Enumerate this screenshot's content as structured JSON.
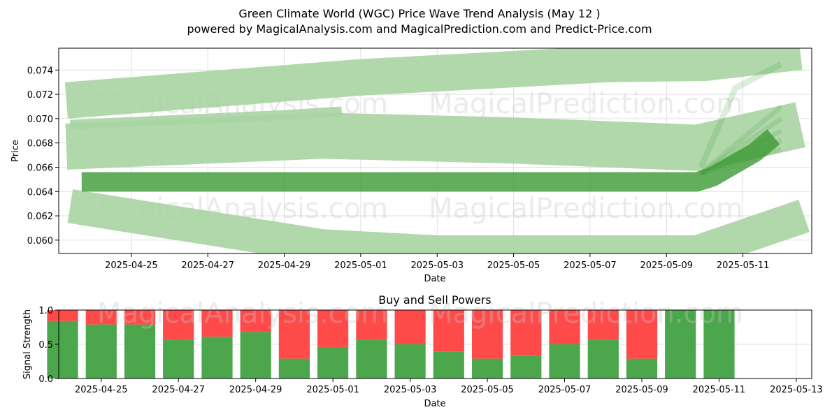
{
  "figure": {
    "title": "Green Climate World (WGC) Price Wave Trend Analysis (May 12 )",
    "subtitle": "powered by MagicalAnalysis.com and MagicalPrediction.com and Predict-Price.com",
    "watermarks": [
      "MagicalAnalysis.com",
      "MagicalPrediction.com",
      "MagicalAnalysis.com",
      "MagicalPrediction.com",
      "MagicalAnalysis.com",
      "MagicalPrediction.com"
    ]
  },
  "colors": {
    "band_light": "#a8d4a2",
    "band_dark": "#3c9a35",
    "buy": "#4ca64c",
    "sell": "#ff4a4a",
    "grid": "#d9d9d9"
  },
  "chart_data": [
    {
      "type": "line",
      "name": "price-wave-chart",
      "title": "",
      "xlabel": "Date",
      "ylabel": "Price",
      "x_ticks": [
        "2025-04-25",
        "2025-04-27",
        "2025-04-29",
        "2025-05-01",
        "2025-05-03",
        "2025-05-05",
        "2025-05-07",
        "2025-05-09",
        "2025-05-11"
      ],
      "y_ticks": [
        "0.060",
        "0.062",
        "0.064",
        "0.066",
        "0.068",
        "0.070",
        "0.072",
        "0.074"
      ],
      "xlim_days": [
        -1.9,
        17.8
      ],
      "ylim": [
        0.0589,
        0.0758
      ],
      "x_origin_date": "2025-04-25",
      "grid": true,
      "series": [
        {
          "name": "upper-band",
          "style": "light",
          "width": 0.003,
          "points": [
            [
              -1.7,
              0.0715
            ],
            [
              6.0,
              0.0734
            ],
            [
              12.5,
              0.0745
            ],
            [
              15.0,
              0.0746
            ],
            [
              17.5,
              0.0755
            ]
          ]
        },
        {
          "name": "middle-band",
          "style": "light",
          "width": 0.0038,
          "points": [
            [
              -1.7,
              0.0677
            ],
            [
              5.0,
              0.0686
            ],
            [
              10.0,
              0.0682
            ],
            [
              14.8,
              0.0676
            ],
            [
              17.5,
              0.0695
            ]
          ]
        },
        {
          "name": "lower-band",
          "style": "light",
          "width": 0.0028,
          "points": [
            [
              -1.6,
              0.0628
            ],
            [
              2.0,
              0.061
            ],
            [
              5.0,
              0.0595
            ],
            [
              8.0,
              0.059
            ],
            [
              14.8,
              0.059
            ],
            [
              17.6,
              0.062
            ]
          ]
        },
        {
          "name": "thin-band",
          "style": "light",
          "width": 0.0008,
          "points": [
            [
              -1.6,
              0.0695
            ],
            [
              4.0,
              0.0703
            ],
            [
              5.5,
              0.0706
            ]
          ]
        },
        {
          "name": "price-band",
          "style": "dark",
          "width": 0.0016,
          "points": [
            [
              -1.3,
              0.0648
            ],
            [
              14.8,
              0.0648
            ],
            [
              15.2,
              0.0652
            ],
            [
              16.3,
              0.0672
            ],
            [
              16.8,
              0.0685
            ]
          ]
        },
        {
          "name": "forecast-fan-1",
          "style": "fan",
          "width": 0.0004,
          "points": [
            [
              14.9,
              0.0655
            ],
            [
              17.0,
              0.069
            ]
          ]
        },
        {
          "name": "forecast-fan-2",
          "style": "fan",
          "width": 0.0004,
          "points": [
            [
              14.9,
              0.0655
            ],
            [
              17.0,
              0.07
            ]
          ]
        },
        {
          "name": "forecast-fan-3",
          "style": "fan",
          "width": 0.0004,
          "points": [
            [
              14.9,
              0.0655
            ],
            [
              17.0,
              0.071
            ]
          ]
        },
        {
          "name": "forecast-fan-4",
          "style": "fan",
          "width": 0.0004,
          "points": [
            [
              14.9,
              0.0655
            ],
            [
              17.0,
              0.0682
            ]
          ]
        },
        {
          "name": "forecast-fan-5",
          "style": "fan",
          "width": 0.0005,
          "points": [
            [
              14.9,
              0.066
            ],
            [
              15.8,
              0.0725
            ],
            [
              17.0,
              0.0745
            ]
          ]
        },
        {
          "name": "forecast-fan-6",
          "style": "fan",
          "width": 0.0004,
          "points": [
            [
              14.9,
              0.0655
            ],
            [
              17.0,
              0.0675
            ]
          ]
        }
      ]
    },
    {
      "type": "bar",
      "name": "buy-sell-powers",
      "title": "Buy and Sell Powers",
      "xlabel": "Date",
      "ylabel": "Signal Strength",
      "x_ticks": [
        "2025-04-25",
        "2025-04-27",
        "2025-04-29",
        "2025-05-01",
        "2025-05-03",
        "2025-05-05",
        "2025-05-07",
        "2025-05-09",
        "2025-05-11",
        "2025-05-13"
      ],
      "y_ticks": [
        "0.0",
        "0.5",
        "1.0"
      ],
      "ylim": [
        0,
        1
      ],
      "xlim_days": [
        -1.1,
        18.4
      ],
      "x_origin_date": "2025-04-25",
      "categories": [
        "2025-04-24",
        "2025-04-25",
        "2025-04-26",
        "2025-04-27",
        "2025-04-28",
        "2025-04-29",
        "2025-04-30",
        "2025-05-01",
        "2025-05-02",
        "2025-05-03",
        "2025-05-04",
        "2025-05-05",
        "2025-05-06",
        "2025-05-07",
        "2025-05-08",
        "2025-05-09",
        "2025-05-10",
        "2025-05-11"
      ],
      "series": [
        {
          "name": "Buy",
          "values": [
            0.84,
            0.79,
            0.79,
            0.57,
            0.61,
            0.68,
            0.29,
            0.46,
            0.57,
            0.5,
            0.39,
            0.29,
            0.33,
            0.5,
            0.57,
            0.29,
            1.0,
            1.0
          ]
        },
        {
          "name": "Sell",
          "values": [
            0.16,
            0.21,
            0.21,
            0.43,
            0.39,
            0.32,
            0.71,
            0.54,
            0.43,
            0.5,
            0.61,
            0.71,
            0.67,
            0.5,
            0.43,
            0.71,
            0.0,
            0.0
          ]
        }
      ]
    }
  ]
}
